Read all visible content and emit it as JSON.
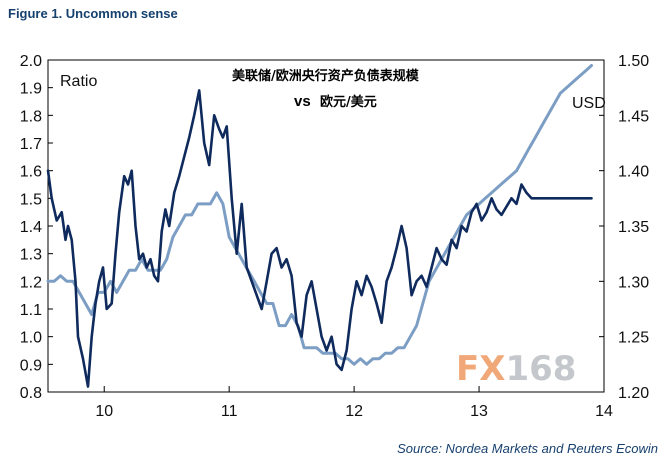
{
  "figure_title": "Figure 1. Uncommon sense",
  "source": "Source: Nordea Markets and Reuters Ecowin",
  "watermark": "FX168",
  "colors": {
    "ratio_line": "#0f2a5c",
    "usd_line": "#7d9ec4",
    "title_blue": "#16406e",
    "watermark_orange": "#f0a878",
    "watermark_grey": "#c4c7cc"
  },
  "chart_data": {
    "type": "line",
    "title_line1": "美联储/欧洲央行资产负债表规模",
    "title_line2_vs": "vs",
    "title_line2": "欧元/美元",
    "left_axis_label": "Ratio",
    "right_axis_label": "USD",
    "left_ylim": [
      0.8,
      2.0
    ],
    "right_ylim": [
      1.2,
      1.5
    ],
    "left_ticks": [
      "0.8",
      "0.9",
      "1.0",
      "1.1",
      "1.2",
      "1.3",
      "1.4",
      "1.5",
      "1.6",
      "1.7",
      "1.8",
      "1.9",
      "2.0"
    ],
    "right_ticks": [
      "1.20",
      "1.25",
      "1.30",
      "1.35",
      "1.40",
      "1.45",
      "1.50"
    ],
    "xlim": [
      2009.55,
      2014.0
    ],
    "x_ticks": [
      {
        "label": "10",
        "value": 2010.0
      },
      {
        "label": "11",
        "value": 2011.0
      },
      {
        "label": "12",
        "value": 2012.0
      },
      {
        "label": "13",
        "value": 2013.0
      },
      {
        "label": "14",
        "value": 2014.0
      }
    ],
    "grid": false,
    "series": [
      {
        "axis": "left",
        "color": "#0f2a5c",
        "x": [
          2009.55,
          2009.58,
          2009.62,
          2009.66,
          2009.69,
          2009.71,
          2009.74,
          2009.77,
          2009.79,
          2009.83,
          2009.87,
          2009.9,
          2009.93,
          2009.96,
          2009.99,
          2010.02,
          2010.06,
          2010.09,
          2010.12,
          2010.16,
          2010.19,
          2010.22,
          2010.25,
          2010.28,
          2010.31,
          2010.34,
          2010.37,
          2010.4,
          2010.43,
          2010.46,
          2010.49,
          2010.52,
          2010.56,
          2010.6,
          2010.64,
          2010.68,
          2010.72,
          2010.76,
          2010.8,
          2010.84,
          2010.88,
          2010.92,
          2010.95,
          2010.98,
          2011.02,
          2011.06,
          2011.1,
          2011.14,
          2011.18,
          2011.22,
          2011.26,
          2011.3,
          2011.34,
          2011.38,
          2011.42,
          2011.46,
          2011.5,
          2011.54,
          2011.58,
          2011.62,
          2011.66,
          2011.7,
          2011.74,
          2011.78,
          2011.82,
          2011.86,
          2011.9,
          2011.94,
          2011.98,
          2012.02,
          2012.06,
          2012.1,
          2012.14,
          2012.18,
          2012.22,
          2012.26,
          2012.3,
          2012.34,
          2012.38,
          2012.42,
          2012.46,
          2012.5,
          2012.54,
          2012.58,
          2012.62,
          2012.66,
          2012.7,
          2012.74,
          2012.78,
          2012.82,
          2012.86,
          2012.9,
          2012.94,
          2012.98,
          2013.02,
          2013.06,
          2013.1,
          2013.14,
          2013.18,
          2013.22,
          2013.26,
          2013.3,
          2013.34,
          2013.38,
          2013.42,
          2013.46,
          2013.5,
          2013.54,
          2013.58,
          2013.62,
          2013.66,
          2013.7,
          2013.74,
          2013.78,
          2013.82,
          2013.86,
          2013.9
        ],
        "values": [
          1.6,
          1.5,
          1.42,
          1.45,
          1.35,
          1.4,
          1.35,
          1.2,
          1.0,
          0.92,
          0.82,
          1.0,
          1.12,
          1.2,
          1.25,
          1.1,
          1.12,
          1.3,
          1.45,
          1.58,
          1.55,
          1.6,
          1.4,
          1.28,
          1.3,
          1.25,
          1.28,
          1.22,
          1.2,
          1.38,
          1.46,
          1.4,
          1.52,
          1.58,
          1.65,
          1.72,
          1.8,
          1.89,
          1.7,
          1.62,
          1.8,
          1.75,
          1.72,
          1.76,
          1.5,
          1.3,
          1.48,
          1.25,
          1.2,
          1.15,
          1.1,
          1.2,
          1.3,
          1.32,
          1.25,
          1.28,
          1.22,
          1.05,
          1.0,
          1.15,
          1.2,
          1.1,
          1.0,
          0.95,
          1.0,
          0.9,
          0.88,
          0.95,
          1.1,
          1.2,
          1.15,
          1.22,
          1.18,
          1.12,
          1.05,
          1.2,
          1.25,
          1.32,
          1.4,
          1.32,
          1.15,
          1.2,
          1.22,
          1.18,
          1.25,
          1.32,
          1.28,
          1.26,
          1.35,
          1.32,
          1.4,
          1.38,
          1.45,
          1.48,
          1.42,
          1.45,
          1.5,
          1.46,
          1.44,
          1.47,
          1.5,
          1.48,
          1.55,
          1.52,
          1.5,
          1.5,
          1.5,
          1.5,
          1.5,
          1.5,
          1.5,
          1.5,
          1.5,
          1.5,
          1.5,
          1.5,
          1.5
        ]
      },
      {
        "axis": "right",
        "color": "#7d9ec4",
        "x": [
          2009.55,
          2009.6,
          2009.65,
          2009.7,
          2009.75,
          2009.8,
          2009.85,
          2009.9,
          2009.95,
          2010.0,
          2010.05,
          2010.1,
          2010.15,
          2010.2,
          2010.25,
          2010.3,
          2010.35,
          2010.4,
          2010.45,
          2010.5,
          2010.55,
          2010.6,
          2010.65,
          2010.7,
          2010.75,
          2010.8,
          2010.85,
          2010.9,
          2010.95,
          2011.0,
          2011.05,
          2011.1,
          2011.15,
          2011.2,
          2011.25,
          2011.3,
          2011.35,
          2011.4,
          2011.45,
          2011.5,
          2011.55,
          2011.6,
          2011.65,
          2011.7,
          2011.75,
          2011.8,
          2011.85,
          2011.9,
          2011.95,
          2012.0,
          2012.05,
          2012.1,
          2012.15,
          2012.2,
          2012.25,
          2012.3,
          2012.35,
          2012.4,
          2012.45,
          2012.5,
          2012.55,
          2012.6,
          2012.65,
          2012.7,
          2012.75,
          2012.8,
          2012.85,
          2012.9,
          2012.95,
          2013.0,
          2013.05,
          2013.1,
          2013.15,
          2013.2,
          2013.25,
          2013.3,
          2013.35,
          2013.4,
          2013.45,
          2013.5,
          2013.55,
          2013.6,
          2013.65,
          2013.7,
          2013.75,
          2013.8,
          2013.85,
          2013.9
        ],
        "values": [
          1.3,
          1.3,
          1.305,
          1.3,
          1.3,
          1.29,
          1.28,
          1.27,
          1.29,
          1.29,
          1.3,
          1.29,
          1.3,
          1.31,
          1.31,
          1.32,
          1.31,
          1.31,
          1.31,
          1.32,
          1.34,
          1.35,
          1.36,
          1.36,
          1.37,
          1.37,
          1.37,
          1.38,
          1.37,
          1.34,
          1.33,
          1.32,
          1.31,
          1.3,
          1.29,
          1.28,
          1.28,
          1.26,
          1.26,
          1.27,
          1.26,
          1.24,
          1.24,
          1.24,
          1.235,
          1.235,
          1.235,
          1.23,
          1.23,
          1.225,
          1.23,
          1.225,
          1.23,
          1.23,
          1.235,
          1.235,
          1.24,
          1.24,
          1.25,
          1.26,
          1.28,
          1.3,
          1.31,
          1.32,
          1.33,
          1.34,
          1.35,
          1.36,
          1.365,
          1.37,
          1.375,
          1.38,
          1.385,
          1.39,
          1.395,
          1.4,
          1.41,
          1.42,
          1.43,
          1.44,
          1.45,
          1.46,
          1.47,
          1.475,
          1.48,
          1.485,
          1.49,
          1.495
        ]
      }
    ]
  }
}
